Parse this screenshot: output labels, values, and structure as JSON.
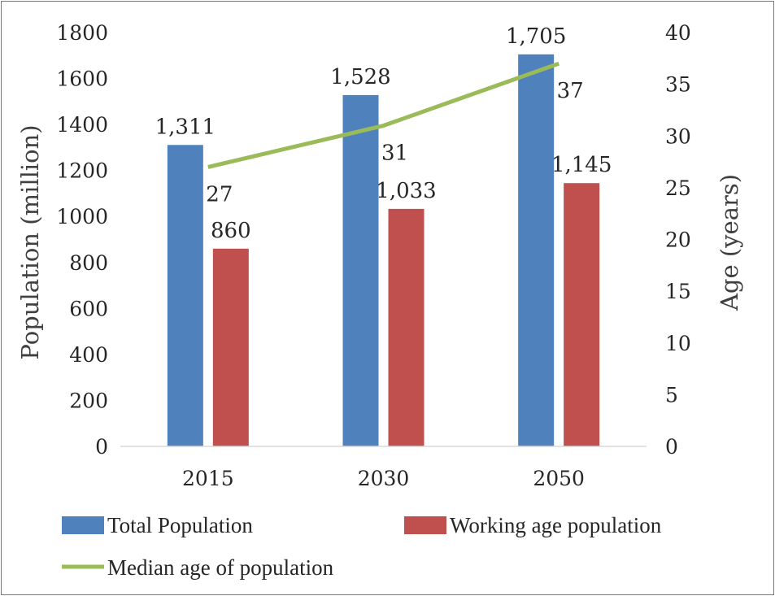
{
  "chart_data": {
    "type": "bar",
    "categories": [
      "2015",
      "2030",
      "2050"
    ],
    "series": [
      {
        "name": "Total Population",
        "kind": "bar",
        "axis": "left",
        "color": "#4f81bd",
        "values": [
          1311,
          1528,
          1705
        ],
        "labels": [
          "1,311",
          "1,528",
          "1,705"
        ]
      },
      {
        "name": "Working age population",
        "kind": "bar",
        "axis": "left",
        "color": "#c0504d",
        "values": [
          860,
          1033,
          1145
        ],
        "labels": [
          "860",
          "1,033",
          "1,145"
        ]
      },
      {
        "name": "Median age of population",
        "kind": "line",
        "axis": "right",
        "color": "#9bbb59",
        "values": [
          27,
          31,
          37
        ],
        "labels": [
          "27",
          "31",
          "37"
        ]
      }
    ],
    "ylabel": "Population (million)",
    "ylabel_right": "Age (years)",
    "ylim": [
      0,
      1800
    ],
    "ylim_right": [
      0,
      40
    ],
    "yticks": [
      "0",
      "200",
      "400",
      "600",
      "800",
      "1000",
      "1200",
      "1400",
      "1600",
      "1800"
    ],
    "yticks_right": [
      "0",
      "5",
      "10",
      "15",
      "20",
      "25",
      "30",
      "35",
      "40"
    ],
    "grid": false,
    "legend_position": "bottom"
  }
}
